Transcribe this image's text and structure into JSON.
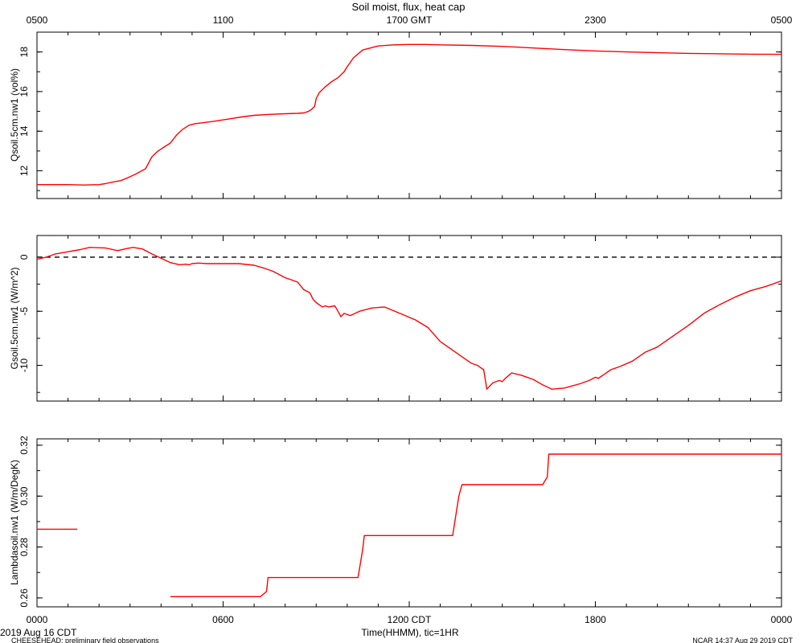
{
  "figure": {
    "title": "Soil moist, flux, heat cap",
    "top_axis_labels": [
      "0500",
      "1100",
      "1700 GMT",
      "2300",
      "0500"
    ],
    "bottom_axis_labels": [
      "0000",
      "0600",
      "1200 CDT",
      "1800",
      "0000"
    ],
    "xlabel": "Time(HHMM), tic=1HR",
    "date_label": "2019 Aug 16 CDT",
    "footer_left": "CHEESEHEAD: preliminary field observations",
    "footer_right": "NCAR 14:37 Aug 29 2019 CDT",
    "line_color": "#ff0000",
    "zero_line_color": "#000000"
  },
  "chart_data": [
    {
      "type": "line",
      "ylabel": "Qsoil.5cm.nw1 (vol%)",
      "ylim": [
        10.6,
        19.0
      ],
      "yticks": [
        12,
        14,
        16,
        18
      ],
      "xlim": [
        0,
        24
      ],
      "grid": false,
      "series": [
        {
          "x": [
            0.0,
            1.0,
            1.5,
            2.0,
            2.2,
            2.5,
            2.7,
            3.0,
            3.2,
            3.5,
            3.7,
            3.9,
            4.0,
            4.1,
            4.3,
            4.5,
            4.7,
            4.9,
            5.1,
            5.3,
            5.7,
            6.2,
            6.6,
            7.0,
            7.5,
            8.0,
            8.4,
            8.6,
            8.75,
            8.85,
            8.95,
            9.0,
            9.1,
            9.3,
            9.5,
            9.7,
            9.9,
            10.0,
            10.2,
            10.5,
            11.0,
            11.5,
            12.0,
            12.5,
            13.0,
            14.0,
            15.0,
            16.0,
            17.0,
            18.0,
            19.0,
            20.0,
            21.0,
            22.0,
            23.0,
            24.0
          ],
          "y": [
            11.3,
            11.3,
            11.28,
            11.3,
            11.35,
            11.45,
            11.5,
            11.7,
            11.85,
            12.1,
            12.7,
            13.0,
            13.1,
            13.2,
            13.4,
            13.8,
            14.1,
            14.3,
            14.38,
            14.42,
            14.5,
            14.62,
            14.72,
            14.8,
            14.85,
            14.88,
            14.9,
            14.92,
            15.0,
            15.1,
            15.25,
            15.65,
            15.95,
            16.25,
            16.5,
            16.7,
            17.0,
            17.25,
            17.7,
            18.1,
            18.3,
            18.36,
            18.38,
            18.38,
            18.36,
            18.33,
            18.28,
            18.2,
            18.12,
            18.05,
            18.0,
            17.96,
            17.93,
            17.91,
            17.89,
            17.88
          ]
        }
      ]
    },
    {
      "type": "line",
      "ylabel": "Gsoil.5cm.nw1 (W/m^2)",
      "ylim": [
        -13.3,
        2.0
      ],
      "yticks": [
        0,
        -5,
        -10
      ],
      "xlim": [
        0,
        24
      ],
      "grid": false,
      "reference_line_y": 0,
      "series": [
        {
          "x": [
            0.0,
            0.3,
            0.6,
            1.0,
            1.4,
            1.7,
            2.2,
            2.6,
            2.9,
            3.1,
            3.4,
            3.7,
            4.0,
            4.3,
            4.6,
            4.8,
            4.9,
            5.0,
            5.2,
            5.5,
            6.0,
            6.5,
            7.0,
            7.3,
            7.6,
            8.0,
            8.4,
            8.6,
            8.8,
            8.9,
            9.0,
            9.1,
            9.2,
            9.3,
            9.4,
            9.6,
            9.7,
            9.8,
            9.9,
            10.1,
            10.4,
            10.8,
            11.2,
            11.7,
            12.2,
            12.6,
            13.0,
            13.4,
            13.7,
            14.0,
            14.2,
            14.3,
            14.4,
            14.5,
            14.7,
            14.9,
            15.0,
            15.1,
            15.3,
            15.6,
            16.0,
            16.3,
            16.6,
            17.0,
            17.5,
            17.8,
            18.0,
            18.1,
            18.2,
            18.3,
            18.5,
            18.8,
            19.2,
            19.6,
            20.0,
            20.5,
            21.0,
            21.5,
            22.0,
            22.5,
            23.0,
            23.5,
            24.0
          ],
          "y": [
            -0.2,
            0.0,
            0.3,
            0.5,
            0.7,
            0.9,
            0.85,
            0.6,
            0.8,
            0.9,
            0.75,
            0.3,
            -0.1,
            -0.5,
            -0.7,
            -0.65,
            -0.7,
            -0.6,
            -0.55,
            -0.6,
            -0.6,
            -0.6,
            -0.75,
            -1.0,
            -1.3,
            -1.9,
            -2.3,
            -3.0,
            -3.3,
            -3.9,
            -4.2,
            -4.4,
            -4.6,
            -4.5,
            -4.6,
            -4.5,
            -5.0,
            -5.5,
            -5.2,
            -5.4,
            -5.0,
            -4.7,
            -4.6,
            -5.2,
            -5.8,
            -6.5,
            -7.8,
            -8.6,
            -9.2,
            -9.8,
            -10.0,
            -10.2,
            -10.4,
            -12.2,
            -11.6,
            -11.4,
            -11.5,
            -11.2,
            -10.7,
            -10.9,
            -11.3,
            -11.8,
            -12.2,
            -12.1,
            -11.7,
            -11.4,
            -11.1,
            -11.2,
            -11.0,
            -10.8,
            -10.4,
            -10.1,
            -9.6,
            -8.8,
            -8.3,
            -7.3,
            -6.3,
            -5.2,
            -4.4,
            -3.7,
            -3.1,
            -2.7,
            -2.2
          ]
        }
      ]
    },
    {
      "type": "line",
      "ylabel": "Lambdasoil.nw1 (W/m/DegK)",
      "ylim": [
        0.2565,
        0.3225
      ],
      "yticks": [
        0.26,
        0.28,
        0.3,
        0.32
      ],
      "xlim": [
        0,
        24
      ],
      "grid": false,
      "segments": [
        {
          "x": [
            0.0,
            1.3
          ],
          "y": [
            0.287,
            0.287
          ]
        },
        {
          "x": [
            4.3,
            7.2,
            7.4,
            7.45,
            10.35,
            10.5,
            10.55,
            13.4,
            13.6,
            13.7,
            16.3,
            16.45,
            16.5,
            24.0
          ],
          "y": [
            0.2605,
            0.2605,
            0.2625,
            0.268,
            0.268,
            0.279,
            0.2845,
            0.2845,
            0.3,
            0.3045,
            0.3045,
            0.3075,
            0.3165,
            0.3165
          ]
        }
      ]
    }
  ]
}
